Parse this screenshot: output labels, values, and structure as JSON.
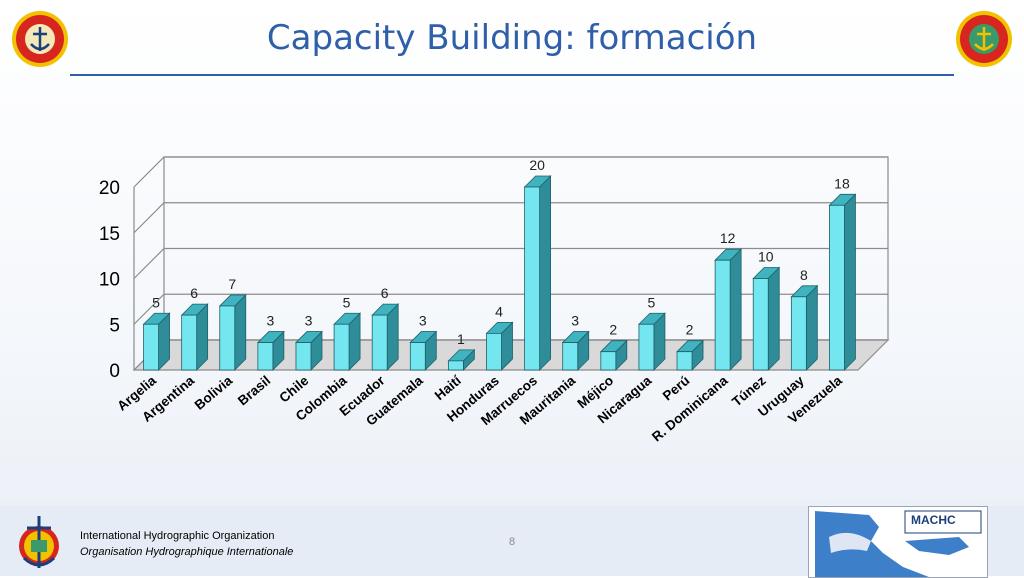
{
  "slide": {
    "title": "Capacity Building: formación",
    "page_number": "8"
  },
  "footer": {
    "org_name_en": "International Hydrographic Organization",
    "org_name_fr": "Organisation Hydrographique Internationale",
    "machc_label": "MACHC"
  },
  "colors": {
    "title": "#2e5fa8",
    "bar_front": "#74e6ef",
    "bar_side": "#2f8c99",
    "bar_top": "#3fb3c0",
    "grid": "#8c8c8c",
    "floor": "#d9d9d9"
  },
  "chart_data": {
    "type": "bar",
    "style": "3d-column",
    "categories": [
      "Argelia",
      "Argentina",
      "Bolivia",
      "Brasil",
      "Chile",
      "Colombia",
      "Ecuador",
      "Guatemala",
      "Haití",
      "Honduras",
      "Marruecos",
      "Mauritania",
      "Méjico",
      "Nicaragua",
      "Perú",
      "R. Dominicana",
      "Túnez",
      "Uruguay",
      "Venezuela"
    ],
    "values": [
      5,
      6,
      7,
      3,
      3,
      5,
      6,
      3,
      1,
      4,
      20,
      3,
      2,
      5,
      2,
      12,
      10,
      8,
      18
    ],
    "ylim": [
      0,
      20
    ],
    "yticks": [
      0,
      5,
      10,
      15,
      20
    ],
    "grid": true,
    "data_labels": true,
    "legend": false,
    "title": "",
    "xlabel": "",
    "ylabel": ""
  }
}
